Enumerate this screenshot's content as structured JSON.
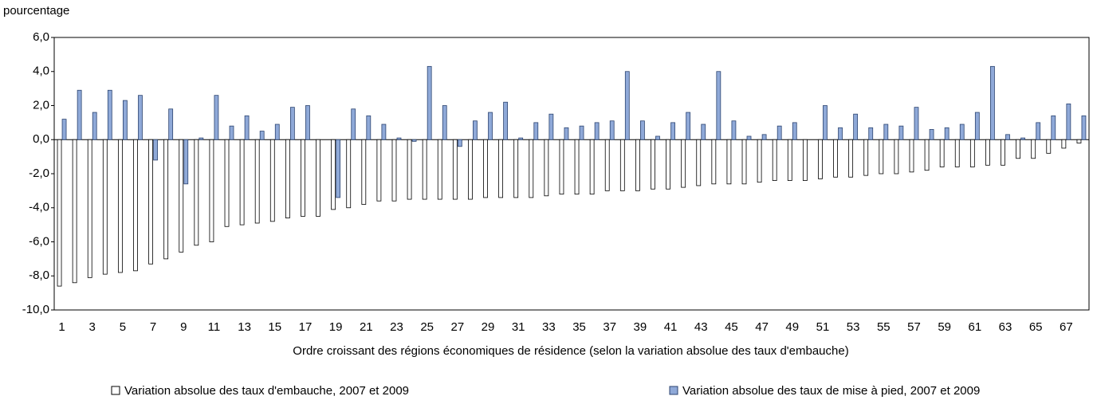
{
  "chart_data": {
    "type": "bar",
    "y_label": "pourcentage",
    "x_label": "Ordre croissant des régions économiques de résidence (selon la variation absolue des taux d'embauche)",
    "categories": [
      1,
      null,
      3,
      null,
      5,
      null,
      7,
      null,
      9,
      null,
      11,
      null,
      13,
      null,
      15,
      null,
      17,
      null,
      19,
      null,
      21,
      null,
      23,
      null,
      25,
      null,
      27,
      null,
      29,
      null,
      31,
      null,
      33,
      null,
      35,
      null,
      37,
      null,
      39,
      null,
      41,
      null,
      43,
      null,
      45,
      null,
      47,
      null,
      49,
      null,
      51,
      null,
      53,
      null,
      55,
      null,
      57,
      null,
      59,
      null,
      61,
      null,
      63,
      null,
      65,
      null,
      67,
      null
    ],
    "series": [
      {
        "name": "Variation absolue des taux d'embauche, 2007 et 2009",
        "color": "#ffffff",
        "values": [
          -8.6,
          -8.4,
          -8.1,
          -7.9,
          -7.8,
          -7.7,
          -7.3,
          -7.0,
          -6.6,
          -6.2,
          -6.0,
          -5.1,
          -5.0,
          -4.9,
          -4.8,
          -4.6,
          -4.5,
          -4.5,
          -4.1,
          -4.0,
          -3.8,
          -3.6,
          -3.6,
          -3.5,
          -3.5,
          -3.5,
          -3.5,
          -3.5,
          -3.4,
          -3.4,
          -3.4,
          -3.4,
          -3.3,
          -3.2,
          -3.2,
          -3.2,
          -3.0,
          -3.0,
          -3.0,
          -2.9,
          -2.9,
          -2.8,
          -2.7,
          -2.6,
          -2.6,
          -2.6,
          -2.5,
          -2.4,
          -2.4,
          -2.4,
          -2.3,
          -2.2,
          -2.2,
          -2.1,
          -2.0,
          -2.0,
          -1.9,
          -1.8,
          -1.6,
          -1.6,
          -1.6,
          -1.5,
          -1.5,
          -1.1,
          -1.1,
          -0.8,
          -0.5,
          -0.2
        ]
      },
      {
        "name": "Variation absolue des taux de mise à pied, 2007 et 2009",
        "color": "#8fa9d8",
        "values": [
          1.2,
          2.9,
          1.6,
          2.9,
          2.3,
          2.6,
          -1.2,
          1.8,
          -2.6,
          0.1,
          2.6,
          0.8,
          1.4,
          0.5,
          0.9,
          1.9,
          2.0,
          0.0,
          -3.4,
          1.8,
          1.4,
          0.9,
          0.1,
          -0.1,
          4.3,
          2.0,
          -0.4,
          1.1,
          1.6,
          2.2,
          0.1,
          1.0,
          1.5,
          0.7,
          0.8,
          1.0,
          1.1,
          4.0,
          1.1,
          0.2,
          1.0,
          1.6,
          0.9,
          4.0,
          1.1,
          0.2,
          0.3,
          0.8,
          1.0,
          0.0,
          2.0,
          0.7,
          1.5,
          0.7,
          0.9,
          0.8,
          1.9,
          0.6,
          0.7,
          0.9,
          1.6,
          4.3,
          0.3,
          0.1,
          1.0,
          1.4,
          2.1,
          1.4
        ]
      }
    ],
    "ylim": [
      -10,
      6
    ],
    "yticks": [
      {
        "value": 6,
        "label": "6,0"
      },
      {
        "value": 4,
        "label": "4,0"
      },
      {
        "value": 2,
        "label": "2,0"
      },
      {
        "value": 0,
        "label": "0,0"
      },
      {
        "value": -2,
        "label": "-2,0"
      },
      {
        "value": -4,
        "label": "-4,0"
      },
      {
        "value": -6,
        "label": "-6,0"
      },
      {
        "value": -8,
        "label": "-8,0"
      },
      {
        "value": -10,
        "label": "-10,0"
      }
    ],
    "grid": false
  }
}
